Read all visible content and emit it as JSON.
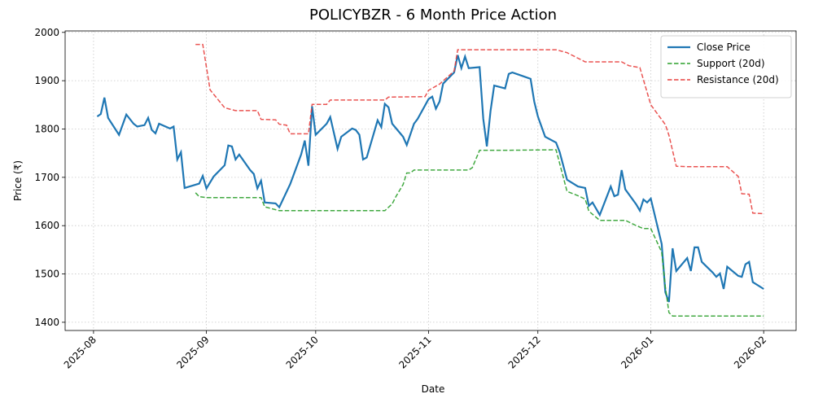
{
  "chart_data": {
    "type": "line",
    "title": "POLICYBZR - 6 Month Price Action",
    "x_label": "Date",
    "y_label": "Price (₹)",
    "xlim": [
      20293.2,
      20493.9
    ],
    "ylim": [
      1383,
      2003
    ],
    "xticks": [
      {
        "value": 20301,
        "label": "2025-08"
      },
      {
        "value": 20332,
        "label": "2025-09"
      },
      {
        "value": 20362,
        "label": "2025-10"
      },
      {
        "value": 20393,
        "label": "2025-11"
      },
      {
        "value": 20423,
        "label": "2025-12"
      },
      {
        "value": 20454,
        "label": "2026-01"
      },
      {
        "value": 20485,
        "label": "2026-02"
      }
    ],
    "yticks": [
      1400,
      1500,
      1600,
      1700,
      1800,
      1900,
      2000
    ],
    "grid": true,
    "legend": "upper right",
    "series": [
      {
        "name": "Close Price",
        "color": "#1f77b4",
        "linestyle": "solid",
        "x": [
          20302,
          20303,
          20304,
          20305,
          20308,
          20310,
          20312,
          20313,
          20315,
          20316,
          20317,
          20318,
          20319,
          20322,
          20323,
          20324,
          20325,
          20326,
          20330,
          20331,
          20332,
          20334,
          20337,
          20338,
          20339,
          20340,
          20341,
          20344,
          20345,
          20346,
          20347,
          20348,
          20351,
          20352,
          20355,
          20358,
          20359,
          20360,
          20361,
          20362,
          20365,
          20366,
          20368,
          20369,
          20372,
          20373,
          20374,
          20375,
          20376,
          20379,
          20380,
          20381,
          20382,
          20383,
          20386,
          20387,
          20389,
          20390,
          20393,
          20394,
          20395,
          20396,
          20397,
          20400,
          20401,
          20402,
          20403,
          20404,
          20407,
          20408,
          20409,
          20410,
          20411,
          20414,
          20415,
          20416,
          20421,
          20422,
          20423,
          20425,
          20428,
          20429,
          20431,
          20434,
          20436,
          20437,
          20438,
          20440,
          20443,
          20444,
          20445,
          20446,
          20447,
          20450,
          20451,
          20452,
          20453,
          20454,
          20457,
          20458,
          20459,
          20460,
          20461,
          20464,
          20465,
          20466,
          20467,
          20468,
          20471,
          20472,
          20473,
          20474,
          20475,
          20478,
          20479,
          20480,
          20481,
          20482,
          20485
        ],
        "values": [
          1826,
          1831,
          1865,
          1823,
          1788,
          1830,
          1811,
          1805,
          1808,
          1823,
          1798,
          1791,
          1811,
          1801,
          1805,
          1737,
          1752,
          1678,
          1687,
          1703,
          1677,
          1702,
          1725,
          1766,
          1764,
          1737,
          1747,
          1715,
          1707,
          1677,
          1693,
          1648,
          1646,
          1638,
          1686,
          1747,
          1776,
          1724,
          1847,
          1788,
          1811,
          1825,
          1759,
          1784,
          1801,
          1798,
          1788,
          1737,
          1741,
          1818,
          1804,
          1852,
          1845,
          1811,
          1784,
          1767,
          1811,
          1821,
          1862,
          1867,
          1842,
          1857,
          1894,
          1917,
          1953,
          1926,
          1950,
          1926,
          1928,
          1821,
          1764,
          1837,
          1890,
          1884,
          1914,
          1917,
          1904,
          1857,
          1826,
          1784,
          1772,
          1752,
          1695,
          1681,
          1678,
          1641,
          1648,
          1622,
          1681,
          1661,
          1664,
          1715,
          1675,
          1644,
          1631,
          1654,
          1648,
          1656,
          1562,
          1462,
          1442,
          1553,
          1506,
          1533,
          1506,
          1555,
          1555,
          1525,
          1503,
          1494,
          1501,
          1469,
          1515,
          1496,
          1494,
          1520,
          1525,
          1483,
          1469
        ]
      },
      {
        "name": "Support (20d)",
        "color": "#2ca02c",
        "linestyle": "dashed",
        "x": [
          20329,
          20330,
          20332,
          20347,
          20348,
          20351,
          20352,
          20381,
          20383,
          20384,
          20386,
          20387,
          20388,
          20389,
          20404,
          20405,
          20407,
          20415,
          20428,
          20431,
          20434,
          20436,
          20437,
          20440,
          20447,
          20450,
          20452,
          20454,
          20457,
          20458,
          20459,
          20460,
          20485
        ],
        "values": [
          1668,
          1660,
          1658,
          1658,
          1639,
          1633,
          1631,
          1631,
          1645,
          1660,
          1685,
          1709,
          1709,
          1715,
          1715,
          1720,
          1756,
          1756,
          1757,
          1671,
          1662,
          1655,
          1630,
          1611,
          1611,
          1600,
          1594,
          1594,
          1545,
          1473,
          1420,
          1413,
          1413
        ]
      },
      {
        "name": "Resistance (20d)",
        "color": "#e8413f",
        "linestyle": "dashed",
        "x": [
          20329,
          20331,
          20333,
          20337,
          20340,
          20346,
          20347,
          20351,
          20352,
          20354,
          20355,
          20360,
          20361,
          20365,
          20366,
          20381,
          20382,
          20392,
          20393,
          20396,
          20400,
          20401,
          20428,
          20431,
          20436,
          20446,
          20448,
          20451,
          20454,
          20458,
          20459,
          20461,
          20464,
          20475,
          20478,
          20479,
          20481,
          20482,
          20485
        ],
        "values": [
          1975,
          1975,
          1881,
          1844,
          1838,
          1838,
          1820,
          1819,
          1810,
          1808,
          1790,
          1790,
          1851,
          1851,
          1860,
          1860,
          1866,
          1867,
          1880,
          1893,
          1920,
          1964,
          1964,
          1958,
          1939,
          1939,
          1931,
          1927,
          1850,
          1809,
          1787,
          1723,
          1722,
          1722,
          1702,
          1666,
          1665,
          1626,
          1625
        ]
      }
    ]
  }
}
